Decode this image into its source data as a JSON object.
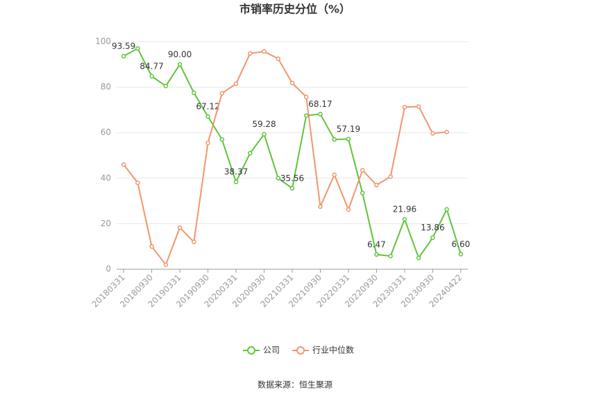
{
  "chart_data": {
    "type": "line",
    "title": "市销率历史分位（%）",
    "categories": [
      "20180331",
      null,
      "20180930",
      null,
      "20190331",
      null,
      "20190930",
      null,
      "20200331",
      null,
      "20200930",
      null,
      "20210331",
      null,
      "20210930",
      null,
      "20220331",
      null,
      "20220930",
      null,
      "20230331",
      null,
      "20230930",
      null,
      "20240422"
    ],
    "series": [
      {
        "name": "公司",
        "color": "#5ec43a",
        "values": [
          93.59,
          97,
          84.77,
          80.5,
          90.0,
          77.5,
          67.12,
          57,
          38.37,
          51,
          59.28,
          40,
          35.56,
          67.5,
          68.17,
          57,
          57.19,
          33.5,
          6.47,
          5.8,
          21.96,
          5,
          13.86,
          26.3,
          6.6
        ],
        "value_labels": [
          "93.59",
          null,
          "84.77",
          null,
          "90.00",
          null,
          "67.12",
          null,
          "38.37",
          null,
          "59.28",
          null,
          "35.56",
          null,
          "68.17",
          null,
          "57.19",
          null,
          "6.47",
          null,
          "21.96",
          null,
          "13.86",
          null,
          "6.60"
        ]
      },
      {
        "name": "行业中位数",
        "color": "#f2956b",
        "values": [
          46,
          38,
          10,
          2,
          18.3,
          12,
          55.5,
          77.3,
          81.5,
          94.8,
          95.7,
          92.5,
          81.8,
          75.7,
          27.5,
          41.5,
          26.2,
          43.5,
          37,
          40.7,
          71.2,
          71.5,
          59.7,
          60.3,
          null
        ]
      }
    ],
    "ylim": [
      0,
      100
    ],
    "yticks": [
      0,
      20,
      40,
      60,
      80,
      100
    ],
    "grid": true,
    "source": "数据来源：恒生聚源"
  }
}
